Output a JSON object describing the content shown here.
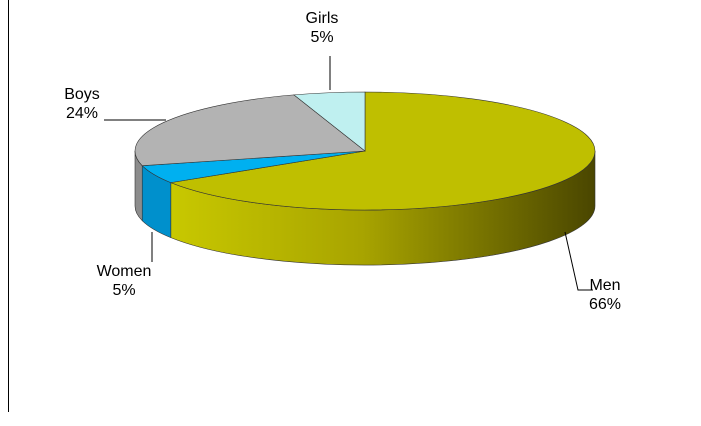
{
  "chart_data": {
    "type": "pie",
    "style": "3d-exploded-none",
    "title": "",
    "slices": [
      {
        "label": "Men",
        "value": 66,
        "display": "66%",
        "color": "#bfbf00",
        "side_color": "#8f8f00"
      },
      {
        "label": "Women",
        "value": 5,
        "display": "5%",
        "color": "#00b0f0",
        "side_color": "#0090cc"
      },
      {
        "label": "Boys",
        "value": 24,
        "display": "24%",
        "color": "#b3b3b3",
        "side_color": "#8c8c8c"
      },
      {
        "label": "Girls",
        "value": 5,
        "display": "5%",
        "color": "#bff0f0",
        "side_color": "#9cd6d6"
      }
    ]
  }
}
